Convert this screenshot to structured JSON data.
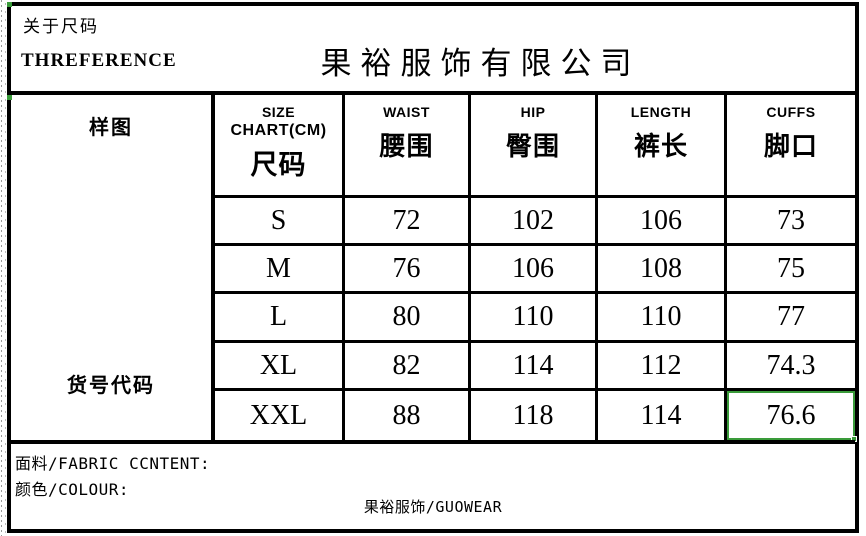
{
  "header": {
    "note": "关于尺码",
    "brand": "THREFERENCE",
    "company": "果裕服饰有限公司"
  },
  "table": {
    "sample_label": "样图",
    "item_code_label": "货号代码",
    "columns": [
      {
        "en": "SIZE",
        "en2": "CHART(CM)",
        "zh": "尺码"
      },
      {
        "en": "WAIST",
        "zh": "腰围"
      },
      {
        "en": "HIP",
        "zh": "臀围"
      },
      {
        "en": "LENGTH",
        "zh": "裤长"
      },
      {
        "en": "CUFFS",
        "zh": "脚口"
      }
    ],
    "rows": [
      {
        "size": "S",
        "waist": "72",
        "hip": "102",
        "length": "106",
        "cuffs": "73"
      },
      {
        "size": "M",
        "waist": "76",
        "hip": "106",
        "length": "108",
        "cuffs": "75"
      },
      {
        "size": "L",
        "waist": "80",
        "hip": "110",
        "length": "110",
        "cuffs": "77"
      },
      {
        "size": "XL",
        "waist": "82",
        "hip": "114",
        "length": "112",
        "cuffs": "74.3"
      },
      {
        "size": "XXL",
        "waist": "88",
        "hip": "118",
        "length": "114",
        "cuffs": "76.6"
      }
    ],
    "selection": {
      "row": "XXL",
      "column": "CUFFS",
      "value": "76.6",
      "color": "#3a9b3a"
    }
  },
  "footer": {
    "fabric_label": "面料/FABRIC CCNTENT:",
    "colour_label": "颜色/COLOUR:",
    "brand_line": "果裕服饰/GUOWEAR"
  }
}
